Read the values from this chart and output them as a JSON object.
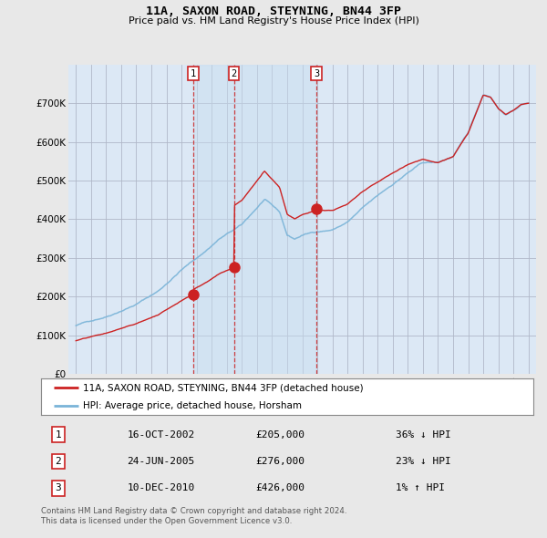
{
  "title": "11A, SAXON ROAD, STEYNING, BN44 3FP",
  "subtitle": "Price paid vs. HM Land Registry's House Price Index (HPI)",
  "ylim": [
    0,
    800000
  ],
  "yticks": [
    0,
    100000,
    200000,
    300000,
    400000,
    500000,
    600000,
    700000
  ],
  "ytick_labels": [
    "£0",
    "£100K",
    "£200K",
    "£300K",
    "£400K",
    "£500K",
    "£600K",
    "£700K"
  ],
  "hpi_color": "#7ab4d8",
  "price_color": "#cc2222",
  "bg_color": "#e8e8e8",
  "plot_bg": "#dce8f5",
  "grid_color": "#b0b8c8",
  "sale_dates": [
    2002.79,
    2005.48,
    2010.94
  ],
  "sale_prices": [
    205000,
    276000,
    426000
  ],
  "sale_labels": [
    "1",
    "2",
    "3"
  ],
  "legend_entries": [
    "11A, SAXON ROAD, STEYNING, BN44 3FP (detached house)",
    "HPI: Average price, detached house, Horsham"
  ],
  "table_rows": [
    [
      "1",
      "16-OCT-2002",
      "£205,000",
      "36% ↓ HPI"
    ],
    [
      "2",
      "24-JUN-2005",
      "£276,000",
      "23% ↓ HPI"
    ],
    [
      "3",
      "10-DEC-2010",
      "£426,000",
      "1% ↑ HPI"
    ]
  ],
  "footnote": "Contains HM Land Registry data © Crown copyright and database right 2024.\nThis data is licensed under the Open Government Licence v3.0.",
  "xmin": 1994.5,
  "xmax": 2025.5
}
